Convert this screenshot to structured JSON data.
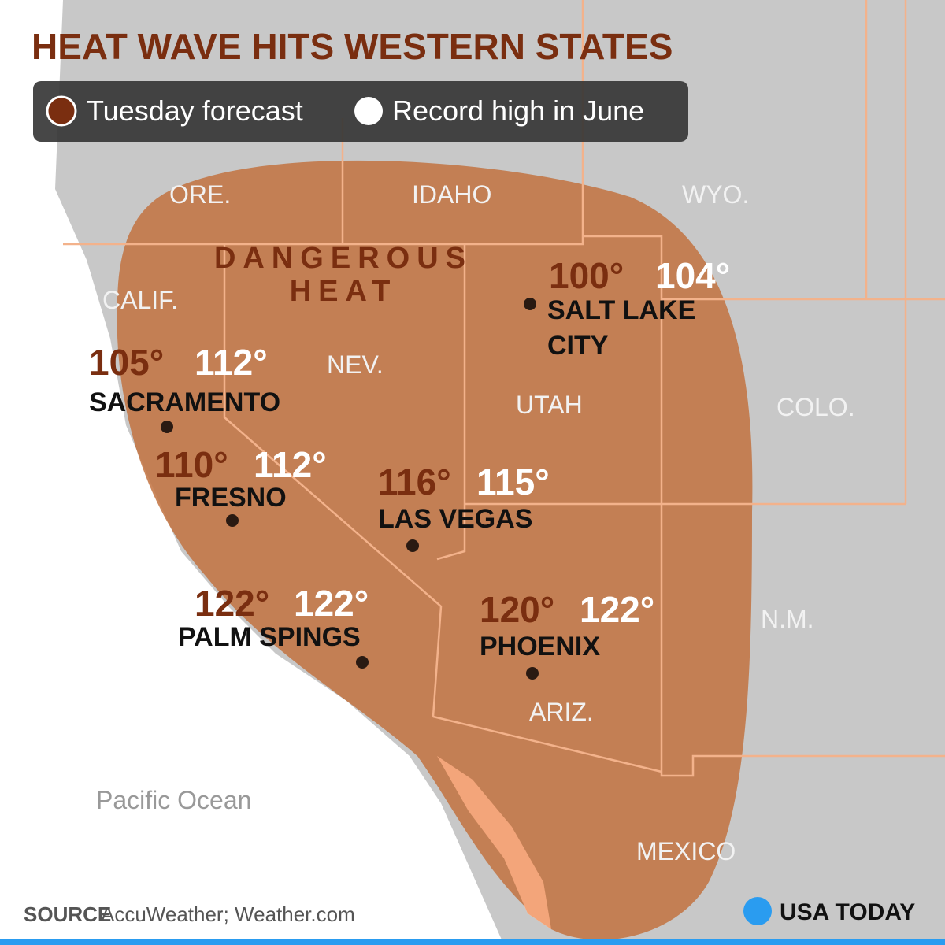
{
  "header": {
    "title": "HEAT WAVE HITS WESTERN STATES"
  },
  "legend": {
    "forecast": "Tuesday forecast",
    "record": "Record high in June"
  },
  "region_label": [
    "DANGEROUS",
    "HEAT"
  ],
  "places": {
    "ore": "ORE.",
    "idaho": "IDAHO",
    "wyo": "WYO.",
    "calif": "CALIF.",
    "nev": "NEV.",
    "utah": "UTAH",
    "colo": "COLO.",
    "nm": "N.M.",
    "ariz": "ARIZ.",
    "mexico": "MEXICO",
    "ocean": "Pacific Ocean"
  },
  "cities": [
    {
      "name": [
        "SALT LAKE",
        "CITY"
      ],
      "forecast": "100°",
      "record": "104°"
    },
    {
      "name": [
        "SACRAMENTO"
      ],
      "forecast": "105°",
      "record": "112°"
    },
    {
      "name": [
        "FRESNO"
      ],
      "forecast": "110°",
      "record": "112°"
    },
    {
      "name": [
        "LAS VEGAS"
      ],
      "forecast": "116°",
      "record": "115°"
    },
    {
      "name": [
        "PALM SPINGS"
      ],
      "forecast": "122°",
      "record": "122°"
    },
    {
      "name": [
        "PHOENIX"
      ],
      "forecast": "120°",
      "record": "122°"
    }
  ],
  "footer": {
    "source_label": "SOURCE",
    "source": "AccuWeather; Weather.com",
    "logo": "USA TODAY"
  }
}
